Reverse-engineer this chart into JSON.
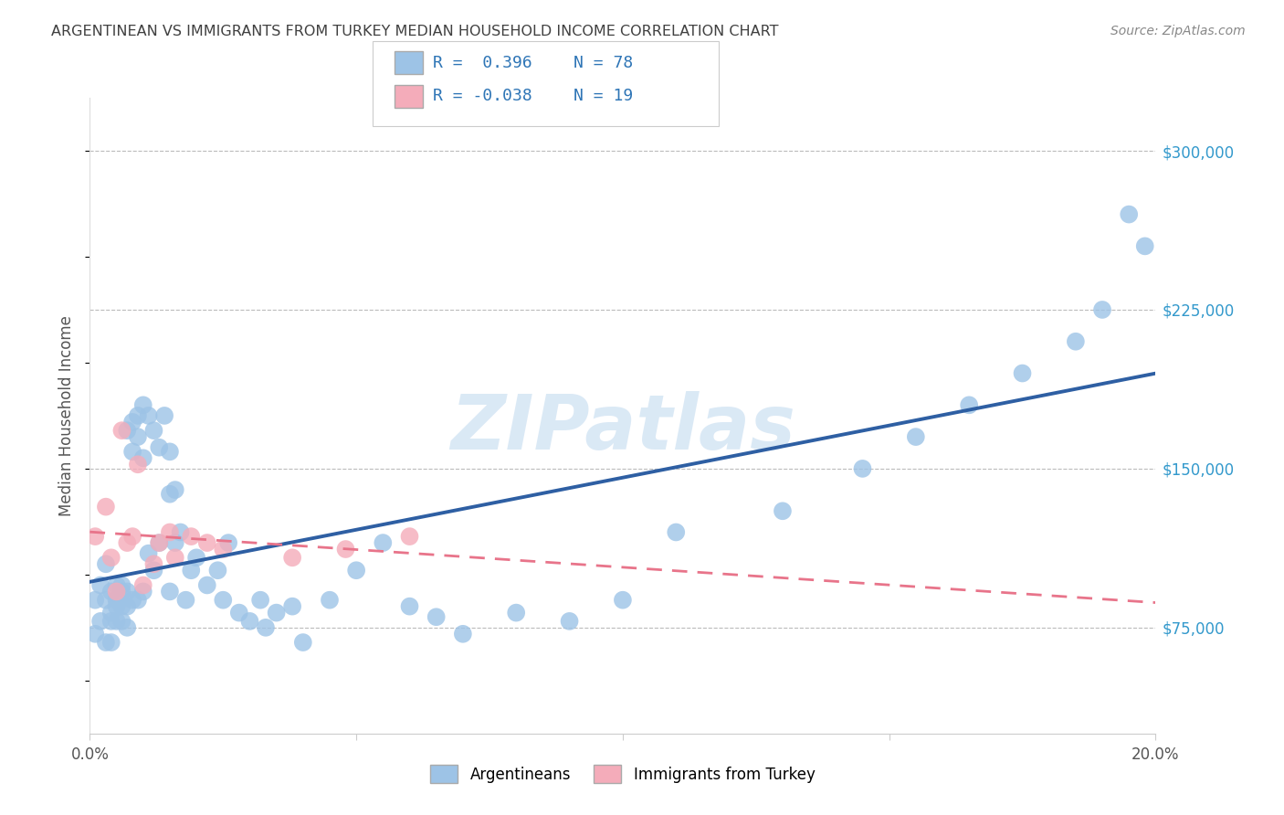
{
  "title": "ARGENTINEAN VS IMMIGRANTS FROM TURKEY MEDIAN HOUSEHOLD INCOME CORRELATION CHART",
  "source": "Source: ZipAtlas.com",
  "ylabel": "Median Household Income",
  "watermark": "ZIPatlas",
  "y_ticks": [
    75000,
    150000,
    225000,
    300000
  ],
  "y_tick_labels": [
    "$75,000",
    "$150,000",
    "$225,000",
    "$300,000"
  ],
  "x_min": 0.0,
  "x_max": 0.2,
  "y_min": 25000,
  "y_max": 325000,
  "legend_R1": "R =  0.396",
  "legend_N1": "N = 78",
  "legend_R2": "R = -0.038",
  "legend_N2": "N = 19",
  "color_blue": "#9DC3E6",
  "color_pink": "#F4ACBA",
  "line_color_blue": "#2E5FA3",
  "line_color_pink": "#E8748A",
  "legend_text_color": "#2E75B6",
  "title_color": "#404040",
  "source_color": "#888888",
  "watermark_color": "#BDD7EE",
  "grid_color": "#BBBBBB",
  "background_color": "#FFFFFF",
  "argentineans_x": [
    0.001,
    0.001,
    0.002,
    0.002,
    0.003,
    0.003,
    0.003,
    0.004,
    0.004,
    0.004,
    0.004,
    0.005,
    0.005,
    0.005,
    0.005,
    0.006,
    0.006,
    0.006,
    0.006,
    0.007,
    0.007,
    0.007,
    0.007,
    0.008,
    0.008,
    0.008,
    0.009,
    0.009,
    0.009,
    0.01,
    0.01,
    0.01,
    0.011,
    0.011,
    0.012,
    0.012,
    0.013,
    0.013,
    0.014,
    0.015,
    0.015,
    0.015,
    0.016,
    0.016,
    0.017,
    0.018,
    0.019,
    0.02,
    0.022,
    0.024,
    0.025,
    0.026,
    0.028,
    0.03,
    0.032,
    0.033,
    0.035,
    0.038,
    0.04,
    0.045,
    0.05,
    0.055,
    0.06,
    0.065,
    0.07,
    0.08,
    0.09,
    0.1,
    0.11,
    0.13,
    0.145,
    0.155,
    0.165,
    0.175,
    0.185,
    0.19,
    0.195,
    0.198
  ],
  "argentineans_y": [
    88000,
    72000,
    95000,
    78000,
    105000,
    88000,
    68000,
    82000,
    92000,
    78000,
    68000,
    88000,
    78000,
    95000,
    85000,
    92000,
    85000,
    78000,
    95000,
    168000,
    92000,
    85000,
    75000,
    172000,
    158000,
    88000,
    175000,
    165000,
    88000,
    180000,
    155000,
    92000,
    175000,
    110000,
    168000,
    102000,
    160000,
    115000,
    175000,
    158000,
    138000,
    92000,
    140000,
    115000,
    120000,
    88000,
    102000,
    108000,
    95000,
    102000,
    88000,
    115000,
    82000,
    78000,
    88000,
    75000,
    82000,
    85000,
    68000,
    88000,
    102000,
    115000,
    85000,
    80000,
    72000,
    82000,
    78000,
    88000,
    120000,
    130000,
    150000,
    165000,
    180000,
    195000,
    210000,
    225000,
    270000,
    255000
  ],
  "turkey_x": [
    0.001,
    0.003,
    0.004,
    0.005,
    0.006,
    0.007,
    0.008,
    0.009,
    0.01,
    0.012,
    0.013,
    0.015,
    0.016,
    0.019,
    0.022,
    0.025,
    0.038,
    0.048,
    0.06
  ],
  "turkey_y": [
    118000,
    132000,
    108000,
    92000,
    168000,
    115000,
    118000,
    152000,
    95000,
    105000,
    115000,
    120000,
    108000,
    118000,
    115000,
    112000,
    108000,
    112000,
    118000
  ]
}
